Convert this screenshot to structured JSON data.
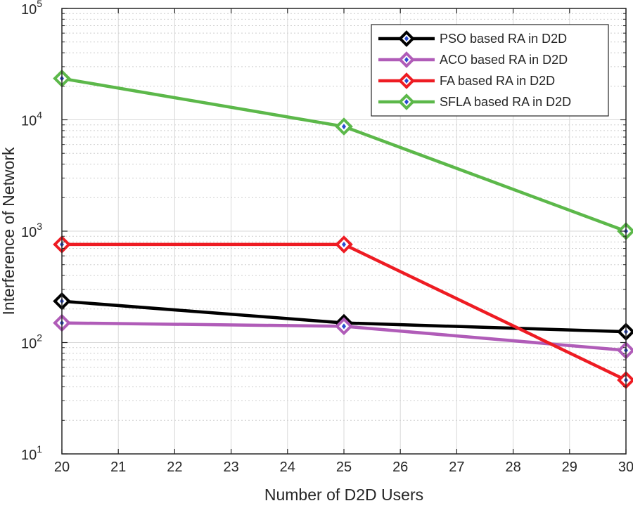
{
  "chart_data": {
    "type": "line",
    "title": "",
    "xlabel": "Number of D2D Users",
    "ylabel": "Interference of Network",
    "x": [
      20,
      25,
      30
    ],
    "xlim": [
      20,
      30
    ],
    "xticks": [
      "20",
      "21",
      "22",
      "23",
      "24",
      "25",
      "26",
      "27",
      "28",
      "29",
      "30"
    ],
    "yscale": "log",
    "ylim": [
      10,
      100000
    ],
    "yticks": [
      {
        "base": "10",
        "exp": "1"
      },
      {
        "base": "10",
        "exp": "2"
      },
      {
        "base": "10",
        "exp": "3"
      },
      {
        "base": "10",
        "exp": "4"
      },
      {
        "base": "10",
        "exp": "5"
      }
    ],
    "grid": true,
    "legend_position": "top-right",
    "series": [
      {
        "name": "PSO based RA in D2D",
        "color": "#000000",
        "values": [
          235,
          150,
          125
        ]
      },
      {
        "name": "ACO based RA in D2D",
        "color": "#b05cb8",
        "values": [
          150,
          140,
          85
        ]
      },
      {
        "name": "FA based RA in D2D",
        "color": "#ee1c23",
        "values": [
          760,
          760,
          46
        ]
      },
      {
        "name": "SFLA based RA in D2D",
        "color": "#5cb84a",
        "values": [
          23500,
          8700,
          1000
        ]
      }
    ],
    "marker_fill": "#2a4bd0"
  }
}
